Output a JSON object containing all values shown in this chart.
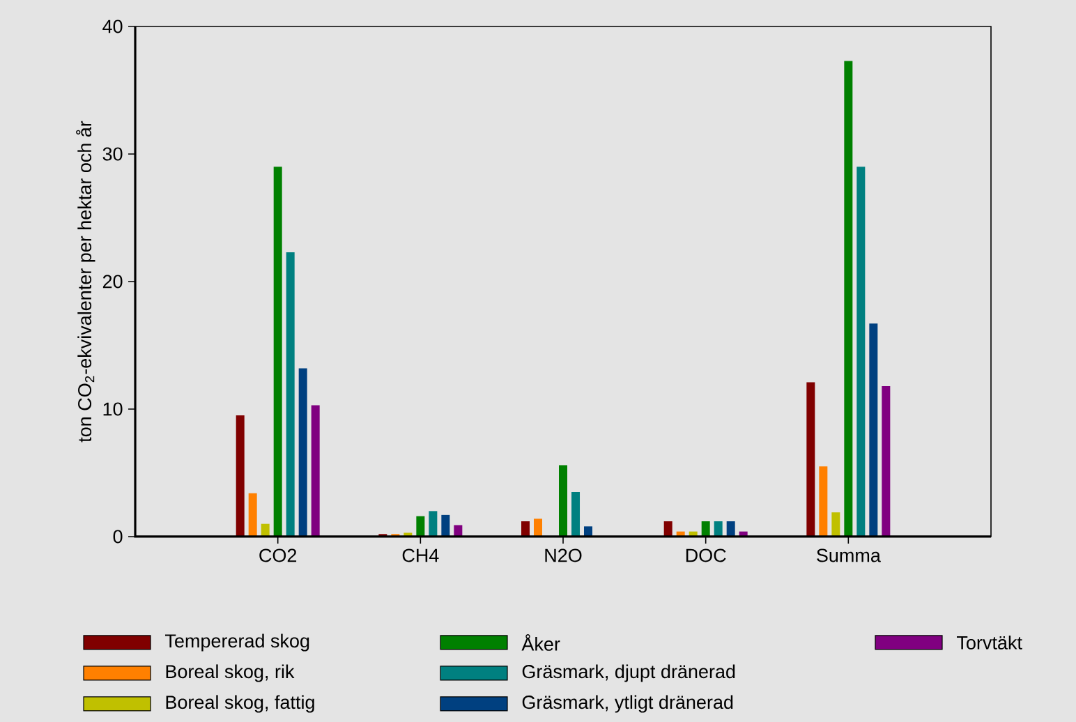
{
  "chart_data": {
    "type": "bar",
    "ylabel": "ton CO$_{2}$-ekvivalenter per hektar och år",
    "categories": [
      "CO2",
      "CH4",
      "N2O",
      "DOC",
      "Summa"
    ],
    "series": [
      {
        "name": "Tempererad skog",
        "color": "#800000",
        "values": [
          9.5,
          0.2,
          1.2,
          1.2,
          12.1
        ]
      },
      {
        "name": "Boreal skog, rik",
        "color": "#ff8000",
        "values": [
          3.4,
          0.2,
          1.4,
          0.4,
          5.5
        ]
      },
      {
        "name": "Boreal skog, fattig",
        "color": "#c0c000",
        "values": [
          1.0,
          0.3,
          null,
          0.4,
          1.9
        ]
      },
      {
        "name": "Åker",
        "color": "#008000",
        "values": [
          29.0,
          1.6,
          5.6,
          1.2,
          37.3
        ]
      },
      {
        "name": "Gräsmark, djupt dränerad",
        "color": "#008080",
        "values": [
          22.3,
          2.0,
          3.5,
          1.2,
          29.0
        ]
      },
      {
        "name": "Gräsmark, ytligt dränerad",
        "color": "#004080",
        "values": [
          13.2,
          1.7,
          0.8,
          1.2,
          16.7
        ]
      },
      {
        "name": "Torvtäkt",
        "color": "#800080",
        "values": [
          10.3,
          0.9,
          null,
          0.4,
          11.8
        ]
      }
    ],
    "ylim": [
      0,
      40
    ],
    "yticks": [
      0,
      10,
      20,
      30,
      40
    ],
    "grid": false,
    "legend": "bottom"
  }
}
